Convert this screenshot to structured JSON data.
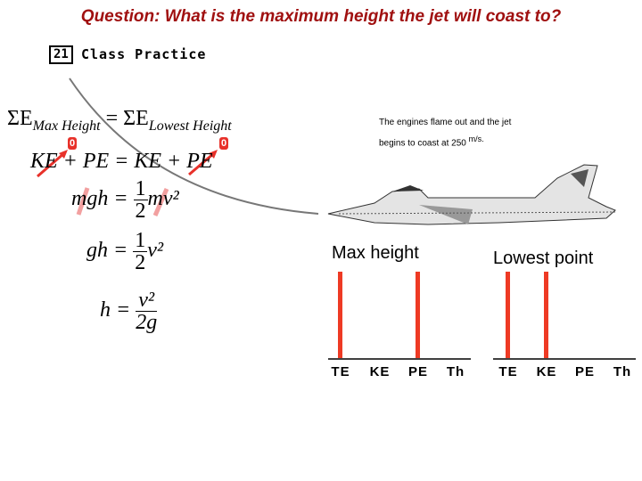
{
  "question": "Question: What is the maximum height the jet will coast to?",
  "slide_number": "21",
  "section_title": "Class Practice",
  "equations": {
    "line1_left": "ΣE",
    "line1_left_sub": "Max Height",
    "line1_eq": "=",
    "line1_right": "ΣE",
    "line1_right_sub": "Lowest Height",
    "line2": "KE + PE = KE + PE",
    "line3_left": "mgh =",
    "line3_frac_num": "1",
    "line3_frac_den": "2",
    "line3_right": "mv²",
    "line4_left": "gh =",
    "line4_frac_num": "1",
    "line4_frac_den": "2",
    "line4_right": "v²",
    "line5_left": "h =",
    "line5_frac_num": "v²",
    "line5_frac_den": "2g",
    "zero_annotation_1": "0",
    "zero_annotation_2": "0"
  },
  "description": {
    "line1": "The engines flame out and the jet",
    "line2": "begins to coast at 250 ",
    "unit": "m/s."
  },
  "colors": {
    "question": "#a01010",
    "bar": "#ee3a24",
    "annotation": "#e8312a"
  },
  "chart_data": [
    {
      "type": "bar",
      "title": "Max height",
      "categories": [
        "TE",
        "KE",
        "PE",
        "Th"
      ],
      "values": [
        1,
        0,
        1,
        0
      ]
    },
    {
      "type": "bar",
      "title": "Lowest point",
      "categories": [
        "TE",
        "KE",
        "PE",
        "Th"
      ],
      "values": [
        1,
        1,
        0,
        0
      ]
    }
  ]
}
